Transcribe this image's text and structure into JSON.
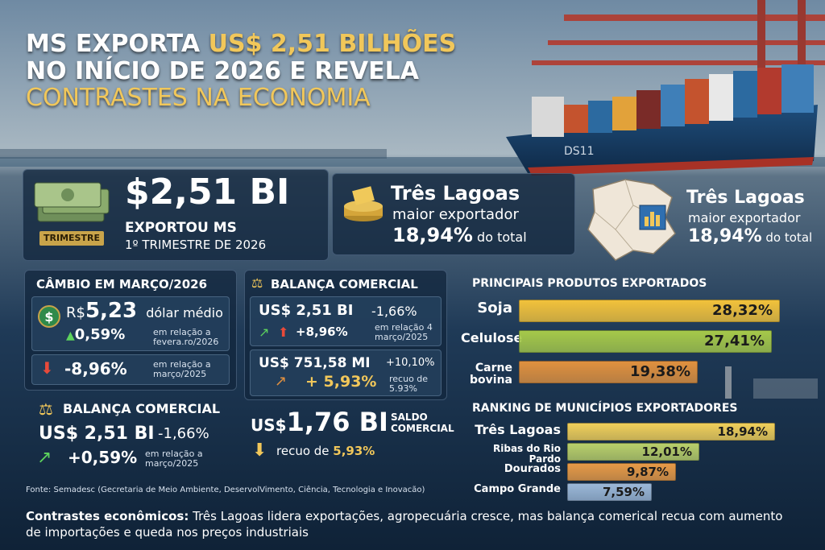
{
  "title": {
    "line1_a": "MS EXPORTA ",
    "line1_b": "US$ 2,51 BILHÕES",
    "line2": "NO INÍCIO DE 2026 E REVELA",
    "line3": "CONTRASTES NA ECONOMIA"
  },
  "ship_label": "DS11",
  "hero": {
    "value": "$2,51 BI",
    "label": "EXPORTOU MS",
    "period": "1º TRIMESTRE DE 2026",
    "badge": "TRIMESTRE"
  },
  "top_exporter_1": {
    "name": "Três Lagoas",
    "sub": "maior exportador",
    "pct": "18,94%",
    "pct_suffix": " do total"
  },
  "top_exporter_2": {
    "name": "Três Lagoas",
    "sub": "maior exportador",
    "pct": "18,94%",
    "pct_suffix": " do total"
  },
  "cambio": {
    "header": "CÂMBIO EM MARÇO/2026",
    "currency": "R$",
    "value": "5,23",
    "value_label": "dólar médio",
    "change_up": "0,59%",
    "change_up_note": "em relação a fevera.ro/2026",
    "change_down": "-8,96%",
    "change_down_note": "em relação a março/2025"
  },
  "balanca_left": {
    "header": "BALANÇA COMERCIAL",
    "value": "US$ 2,51 BI",
    "change": "-1,66%",
    "change_up": "+0,59%",
    "note": "em relação a março/2025"
  },
  "balanca_mid": {
    "header": "BALANÇA COMERCIAL",
    "value1": "US$ 2,51 BI",
    "change1": "-1,66%",
    "change1_up": "+8,96%",
    "note1": "em relação 4 março/2025",
    "value2": "US$ 751,58 MI",
    "change2": "+10,10%",
    "change2_up": "+ 5,93%",
    "note2": "recuo de 5.93%",
    "saldo_value_prefix": "US$",
    "saldo_value": "1,76 BI",
    "saldo_label": "SALDO COMERCIAL",
    "recuo_prefix": "recuo de ",
    "recuo_value": "5,93%"
  },
  "produtos": {
    "header": "PRINCIPAIS PRODUTOS EXPORTADOS",
    "items": [
      {
        "label": "Soja",
        "value": 28.32,
        "pct": "28,32%",
        "color": "#f2c23b"
      },
      {
        "label": "Celulose",
        "value": 27.41,
        "pct": "27,41%",
        "color": "#a6c94a"
      },
      {
        "label": "Carne bovina",
        "value": 19.38,
        "pct": "19,38%",
        "color": "#e0913f"
      }
    ]
  },
  "ranking": {
    "header": "RANKING DE MUNICÍPIOS EXPORTADORES",
    "items": [
      {
        "label": "Três Lagoas",
        "value": 18.94,
        "pct": "18,94%",
        "color": "#f0cf5a"
      },
      {
        "label": "Ribas do Rio Pardo",
        "value": 12.01,
        "pct": "12,01%",
        "color": "#b9cf6a"
      },
      {
        "label": "Dourados",
        "value": 9.87,
        "pct": "9,87%",
        "color": "#e79a47"
      },
      {
        "label": "Campo Grande",
        "value": 7.59,
        "pct": "7,59%",
        "color": "#9cb8d8"
      }
    ]
  },
  "source": "Fonte: Semadesc (Gecretaria de Meio Ambiente, DeservolVimento, Ciência, Tecnologia e Inovacão)",
  "footer": {
    "bold": "Contrastes econômicos:",
    "text": " Três Lagoas lidera exportações, agropecuária cresce, mas balança comerical recua com aumento de importações e queda nos preços industriais"
  }
}
